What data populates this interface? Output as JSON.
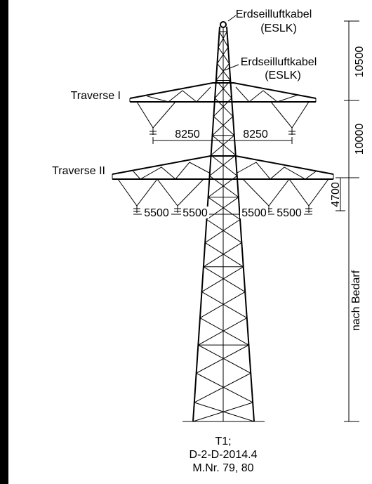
{
  "cables": [
    {
      "name": "Erdseilluftkabel",
      "abbr": "(ESLK)"
    },
    {
      "name": "Erdseilluftkabel",
      "abbr": "(ESLK)"
    }
  ],
  "traverses": [
    "Traverse I",
    "Traverse II"
  ],
  "dimensions": {
    "traverse_1": [
      "8250",
      "8250"
    ],
    "traverse_2": [
      "5500",
      "5500",
      "5500",
      "5500"
    ],
    "vertical": [
      "10500",
      "10000",
      "4700",
      "nach Bedarf"
    ]
  },
  "caption": [
    "T1;",
    "D-2-D-2014.4",
    "M.Nr. 79, 80"
  ]
}
